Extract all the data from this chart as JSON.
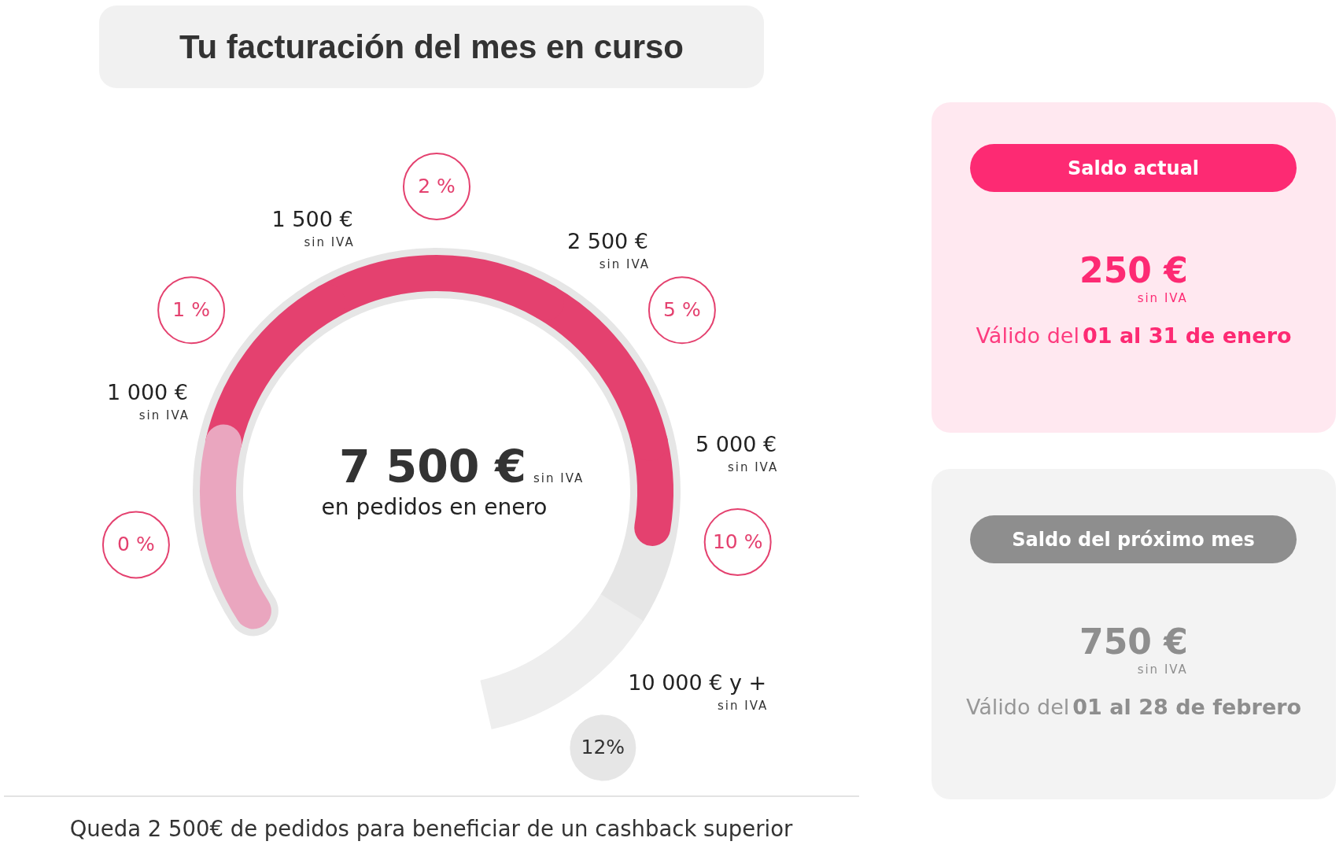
{
  "chart_data": [
    {
      "type": "other",
      "title": "Tu facturación del mes en curso",
      "categories": [
        "0 %",
        "1 %",
        "2 %",
        "5 %",
        "10 %",
        "12%"
      ],
      "values": [
        null,
        1000,
        1500,
        2500,
        5000,
        10000
      ],
      "value_labels": [
        null,
        "1 000 €",
        "1 500 €",
        "2 500 €",
        "5 000 €",
        "10 000 € y +"
      ],
      "xlabel": "sin IVA",
      "annotations": [
        "Queda 2 500€ de pedidos para beneficiar de un cashback superior"
      ]
    },
    {
      "type": "other",
      "values": [
        7500
      ],
      "value_labels": [
        "7 500 €"
      ],
      "xlabel": "sin IVA",
      "annotations": [
        "en pedidos en enero"
      ]
    },
    {
      "type": "other",
      "title": "Saldo actual",
      "color": "#fd2a73",
      "annotations": [
        "250 €",
        "sin IVA",
        "Válido del",
        "01 al 31 de enero"
      ]
    },
    {
      "type": "other",
      "title": "Saldo del próximo mes",
      "color": "#8e8e8e",
      "annotations": [
        "750 €",
        "sin IVA",
        "Válido del",
        "01 al 28 de febrero"
      ]
    }
  ]
}
